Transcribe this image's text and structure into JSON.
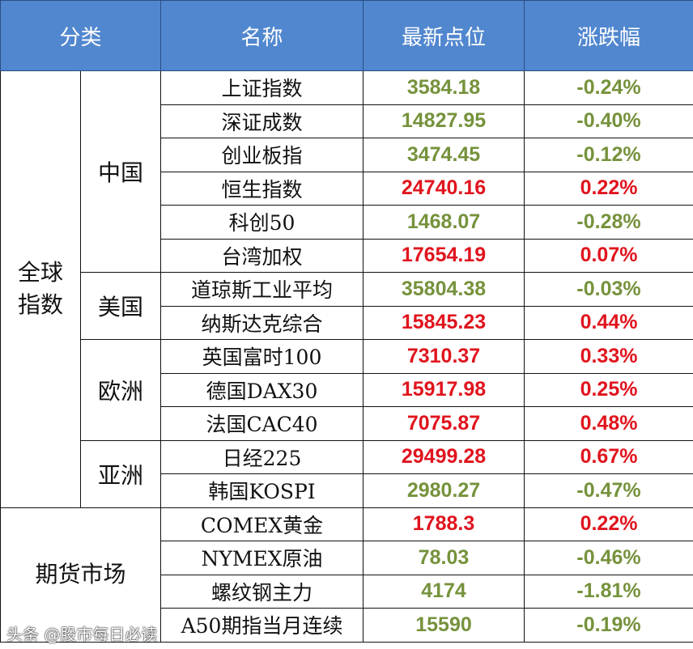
{
  "header": {
    "category": "分类",
    "name": "名称",
    "latest": "最新点位",
    "change": "涨跌幅"
  },
  "colors": {
    "header_bg": "#5187cf",
    "up": "#e0141e",
    "down": "#76923c"
  },
  "groups": [
    {
      "label": "全球指数",
      "subgroups": [
        {
          "label": "中国",
          "rows": [
            {
              "name": "上证指数",
              "value": "3584.18",
              "change": "-0.24%",
              "dir": "down"
            },
            {
              "name": "深证成数",
              "value": "14827.95",
              "change": "-0.40%",
              "dir": "down"
            },
            {
              "name": "创业板指",
              "value": "3474.45",
              "change": "-0.12%",
              "dir": "down"
            },
            {
              "name": "恒生指数",
              "value": "24740.16",
              "change": "0.22%",
              "dir": "up"
            },
            {
              "name": "科创50",
              "value": "1468.07",
              "change": "-0.28%",
              "dir": "down"
            },
            {
              "name": "台湾加权",
              "value": "17654.19",
              "change": "0.07%",
              "dir": "up"
            }
          ]
        },
        {
          "label": "美国",
          "rows": [
            {
              "name": "道琼斯工业平均",
              "value": "35804.38",
              "change": "-0.03%",
              "dir": "down"
            },
            {
              "name": "纳斯达克综合",
              "value": "15845.23",
              "change": "0.44%",
              "dir": "up"
            }
          ]
        },
        {
          "label": "欧洲",
          "rows": [
            {
              "name": "英国富时100",
              "value": "7310.37",
              "change": "0.33%",
              "dir": "up"
            },
            {
              "name": "德国DAX30",
              "value": "15917.98",
              "change": "0.25%",
              "dir": "up"
            },
            {
              "name": "法国CAC40",
              "value": "7075.87",
              "change": "0.48%",
              "dir": "up"
            }
          ]
        },
        {
          "label": "亚洲",
          "rows": [
            {
              "name": "日经225",
              "value": "29499.28",
              "change": "0.67%",
              "dir": "up"
            },
            {
              "name": "韩国KOSPI",
              "value": "2980.27",
              "change": "-0.47%",
              "dir": "down"
            }
          ]
        }
      ]
    },
    {
      "label": "期货市场",
      "subgroups": [
        {
          "label": "",
          "rows": [
            {
              "name": "COMEX黄金",
              "value": "1788.3",
              "change": "0.22%",
              "dir": "up"
            },
            {
              "name": "NYMEX原油",
              "value": "78.03",
              "change": "-0.46%",
              "dir": "down"
            },
            {
              "name": "螺纹钢主力",
              "value": "4174",
              "change": "-1.81%",
              "dir": "down"
            },
            {
              "name": "A50期指当月连续",
              "value": "15590",
              "change": "-0.19%",
              "dir": "down"
            }
          ]
        }
      ]
    }
  ],
  "watermark": "头条 @股市每日必读"
}
